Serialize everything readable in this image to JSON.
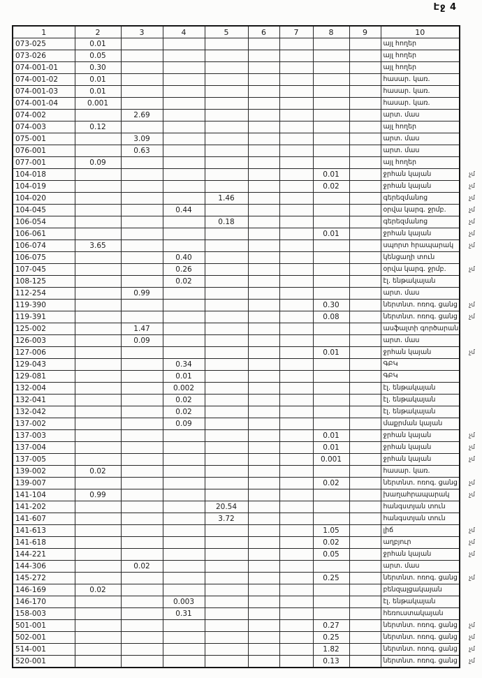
{
  "page": {
    "label": "Էջ 4"
  },
  "colors": {
    "ink": "#1b1b1b",
    "paper": "#fcfcfb",
    "border": "#262626"
  },
  "margin_note_glyph": "չմ",
  "table": {
    "headers": [
      "1",
      "2",
      "3",
      "4",
      "5",
      "6",
      "7",
      "8",
      "9",
      "10"
    ],
    "rows": [
      {
        "cells": [
          "073-025",
          "0.01",
          "",
          "",
          "",
          "",
          "",
          "",
          "",
          "այլ հողեր"
        ],
        "note": ""
      },
      {
        "cells": [
          "073-026",
          "0.05",
          "",
          "",
          "",
          "",
          "",
          "",
          "",
          "այլ հողեր"
        ],
        "note": ""
      },
      {
        "cells": [
          "074-001-01",
          "0.30",
          "",
          "",
          "",
          "",
          "",
          "",
          "",
          "այլ հողեր"
        ],
        "note": ""
      },
      {
        "cells": [
          "074-001-02",
          "0.01",
          "",
          "",
          "",
          "",
          "",
          "",
          "",
          "հասար. կառ."
        ],
        "note": ""
      },
      {
        "cells": [
          "074-001-03",
          "0.01",
          "",
          "",
          "",
          "",
          "",
          "",
          "",
          "հասար. կառ."
        ],
        "note": ""
      },
      {
        "cells": [
          "074-001-04",
          "0.001",
          "",
          "",
          "",
          "",
          "",
          "",
          "",
          "հասար. կառ."
        ],
        "note": ""
      },
      {
        "cells": [
          "074-002",
          "",
          "2.69",
          "",
          "",
          "",
          "",
          "",
          "",
          "արտ. մաս"
        ],
        "note": ""
      },
      {
        "cells": [
          "074-003",
          "0.12",
          "",
          "",
          "",
          "",
          "",
          "",
          "",
          "այլ հողեր"
        ],
        "note": ""
      },
      {
        "cells": [
          "075-001",
          "",
          "3.09",
          "",
          "",
          "",
          "",
          "",
          "",
          "արտ. մաս"
        ],
        "note": ""
      },
      {
        "cells": [
          "076-001",
          "",
          "0.63",
          "",
          "",
          "",
          "",
          "",
          "",
          "արտ. մաս"
        ],
        "note": ""
      },
      {
        "cells": [
          "077-001",
          "0.09",
          "",
          "",
          "",
          "",
          "",
          "",
          "",
          "այլ հողեր"
        ],
        "note": ""
      },
      {
        "cells": [
          "104-018",
          "",
          "",
          "",
          "",
          "",
          "",
          "0.01",
          "",
          "ջրհան կայան"
        ],
        "note": "չմ"
      },
      {
        "cells": [
          "104-019",
          "",
          "",
          "",
          "",
          "",
          "",
          "0.02",
          "",
          "ջրհան կայան"
        ],
        "note": "չմ"
      },
      {
        "cells": [
          "104-020",
          "",
          "",
          "",
          "1.46",
          "",
          "",
          "",
          "",
          "գերեզմանոց"
        ],
        "note": "չմ"
      },
      {
        "cells": [
          "104-045",
          "",
          "",
          "0.44",
          "",
          "",
          "",
          "",
          "",
          "օրվա կարգ. ջրմբ."
        ],
        "note": "չմ"
      },
      {
        "cells": [
          "106-054",
          "",
          "",
          "",
          "0.18",
          "",
          "",
          "",
          "",
          "գերեզմանոց"
        ],
        "note": "չմ"
      },
      {
        "cells": [
          "106-061",
          "",
          "",
          "",
          "",
          "",
          "",
          "0.01",
          "",
          "ջրհան կայան"
        ],
        "note": "չմ"
      },
      {
        "cells": [
          "106-074",
          "3.65",
          "",
          "",
          "",
          "",
          "",
          "",
          "",
          "սպորտ հրապարակ"
        ],
        "note": "չմ"
      },
      {
        "cells": [
          "106-075",
          "",
          "",
          "0.40",
          "",
          "",
          "",
          "",
          "",
          "կենցաղի տուն"
        ],
        "note": ""
      },
      {
        "cells": [
          "107-045",
          "",
          "",
          "0.26",
          "",
          "",
          "",
          "",
          "",
          "օրվա կարգ. ջրմբ."
        ],
        "note": "չմ"
      },
      {
        "cells": [
          "108-125",
          "",
          "",
          "0.02",
          "",
          "",
          "",
          "",
          "",
          "էլ. ենթակայան"
        ],
        "note": ""
      },
      {
        "cells": [
          "112-254",
          "",
          "0.99",
          "",
          "",
          "",
          "",
          "",
          "",
          "արտ. մաս"
        ],
        "note": ""
      },
      {
        "cells": [
          "119-390",
          "",
          "",
          "",
          "",
          "",
          "",
          "0.30",
          "",
          "ներտնտ. ոռոգ. ցանց"
        ],
        "note": "չմ"
      },
      {
        "cells": [
          "119-391",
          "",
          "",
          "",
          "",
          "",
          "",
          "0.08",
          "",
          "ներտնտ. ոռոգ. ցանց"
        ],
        "note": "չմ"
      },
      {
        "cells": [
          "125-002",
          "",
          "1.47",
          "",
          "",
          "",
          "",
          "",
          "",
          "ասֆալտի գործարան"
        ],
        "note": ""
      },
      {
        "cells": [
          "126-003",
          "",
          "0.09",
          "",
          "",
          "",
          "",
          "",
          "",
          "արտ. մաս"
        ],
        "note": ""
      },
      {
        "cells": [
          "127-006",
          "",
          "",
          "",
          "",
          "",
          "",
          "0.01",
          "",
          "ջրհան կայան"
        ],
        "note": "չմ"
      },
      {
        "cells": [
          "129-043",
          "",
          "",
          "0.34",
          "",
          "",
          "",
          "",
          "",
          "ԳԲԿ"
        ],
        "note": ""
      },
      {
        "cells": [
          "129-081",
          "",
          "",
          "0.01",
          "",
          "",
          "",
          "",
          "",
          "ԳԲԿ"
        ],
        "note": ""
      },
      {
        "cells": [
          "132-004",
          "",
          "",
          "0.002",
          "",
          "",
          "",
          "",
          "",
          "էլ. ենթակայան"
        ],
        "note": ""
      },
      {
        "cells": [
          "132-041",
          "",
          "",
          "0.02",
          "",
          "",
          "",
          "",
          "",
          "էլ. ենթակայան"
        ],
        "note": ""
      },
      {
        "cells": [
          "132-042",
          "",
          "",
          "0.02",
          "",
          "",
          "",
          "",
          "",
          "էլ. ենթակայան"
        ],
        "note": ""
      },
      {
        "cells": [
          "137-002",
          "",
          "",
          "0.09",
          "",
          "",
          "",
          "",
          "",
          "մաքրման կայան"
        ],
        "note": ""
      },
      {
        "cells": [
          "137-003",
          "",
          "",
          "",
          "",
          "",
          "",
          "0.01",
          "",
          "ջրհան կայան"
        ],
        "note": "չմ"
      },
      {
        "cells": [
          "137-004",
          "",
          "",
          "",
          "",
          "",
          "",
          "0.01",
          "",
          "ջրհան կայան"
        ],
        "note": "չմ"
      },
      {
        "cells": [
          "137-005",
          "",
          "",
          "",
          "",
          "",
          "",
          "0.001",
          "",
          "ջրհան կայան"
        ],
        "note": "չմ"
      },
      {
        "cells": [
          "139-002",
          "0.02",
          "",
          "",
          "",
          "",
          "",
          "",
          "",
          "հասար. կառ."
        ],
        "note": ""
      },
      {
        "cells": [
          "139-007",
          "",
          "",
          "",
          "",
          "",
          "",
          "0.02",
          "",
          "ներտնտ. ոռոգ. ցանց"
        ],
        "note": "չմ"
      },
      {
        "cells": [
          "141-104",
          "0.99",
          "",
          "",
          "",
          "",
          "",
          "",
          "",
          "խաղահրապարակ"
        ],
        "note": "չմ"
      },
      {
        "cells": [
          "141-202",
          "",
          "",
          "",
          "20.54",
          "",
          "",
          "",
          "",
          "հանգստյան տուն"
        ],
        "note": ""
      },
      {
        "cells": [
          "141-607",
          "",
          "",
          "",
          "3.72",
          "",
          "",
          "",
          "",
          "հանգստյան տուն"
        ],
        "note": ""
      },
      {
        "cells": [
          "141-613",
          "",
          "",
          "",
          "",
          "",
          "",
          "1.05",
          "",
          "լիճ"
        ],
        "note": "չմ"
      },
      {
        "cells": [
          "141-618",
          "",
          "",
          "",
          "",
          "",
          "",
          "0.02",
          "",
          "աղբյուր"
        ],
        "note": "չմ"
      },
      {
        "cells": [
          "144-221",
          "",
          "",
          "",
          "",
          "",
          "",
          "0.05",
          "",
          "ջրհան կայան"
        ],
        "note": "չմ"
      },
      {
        "cells": [
          "144-306",
          "",
          "0.02",
          "",
          "",
          "",
          "",
          "",
          "",
          "արտ. մաս"
        ],
        "note": ""
      },
      {
        "cells": [
          "145-272",
          "",
          "",
          "",
          "",
          "",
          "",
          "0.25",
          "",
          "ներտնտ. ոռոգ. ցանց"
        ],
        "note": "չմ"
      },
      {
        "cells": [
          "146-169",
          "0.02",
          "",
          "",
          "",
          "",
          "",
          "",
          "",
          "բենզալցակայան"
        ],
        "note": ""
      },
      {
        "cells": [
          "146-170",
          "",
          "",
          "0.003",
          "",
          "",
          "",
          "",
          "",
          "էլ. ենթակայան"
        ],
        "note": ""
      },
      {
        "cells": [
          "158-003",
          "",
          "",
          "0.31",
          "",
          "",
          "",
          "",
          "",
          "հեռուստակայան"
        ],
        "note": ""
      },
      {
        "cells": [
          "501-001",
          "",
          "",
          "",
          "",
          "",
          "",
          "0.27",
          "",
          "ներտնտ. ոռոգ. ցանց"
        ],
        "note": "չմ"
      },
      {
        "cells": [
          "502-001",
          "",
          "",
          "",
          "",
          "",
          "",
          "0.25",
          "",
          "ներտնտ. ոռոգ. ցանց"
        ],
        "note": "չմ"
      },
      {
        "cells": [
          "514-001",
          "",
          "",
          "",
          "",
          "",
          "",
          "1.82",
          "",
          "ներտնտ. ոռոգ. ցանց"
        ],
        "note": "չմ"
      },
      {
        "cells": [
          "520-001",
          "",
          "",
          "",
          "",
          "",
          "",
          "0.13",
          "",
          "ներտնտ. ոռոգ. ցանց"
        ],
        "note": "չմ"
      }
    ]
  }
}
